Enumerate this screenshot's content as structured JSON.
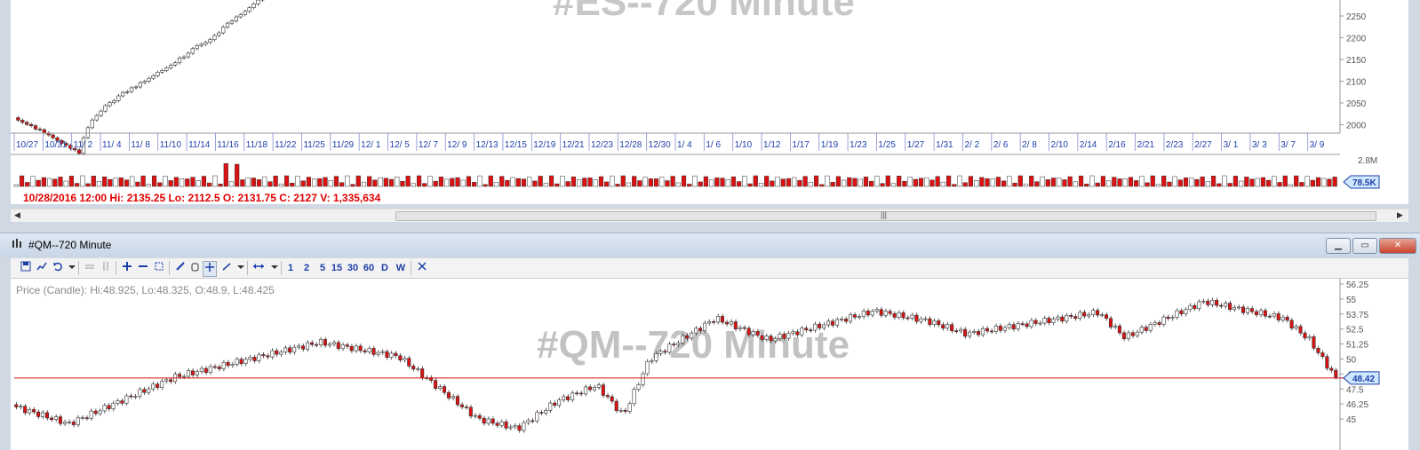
{
  "top_chart": {
    "watermark": "#ES--720 Minute",
    "y_ticks": [
      "2250",
      "2200",
      "2150",
      "2100",
      "2050",
      "2000"
    ],
    "x_ticks": [
      "10/27",
      "10/31",
      "11/ 2",
      "11/ 4",
      "11/ 8",
      "11/10",
      "11/14",
      "11/16",
      "11/18",
      "11/22",
      "11/25",
      "11/29",
      "12/ 1",
      "12/ 5",
      "12/ 7",
      "12/ 9",
      "12/13",
      "12/15",
      "12/19",
      "12/21",
      "12/23",
      "12/28",
      "12/30",
      "1/ 4",
      "1/ 6",
      "1/10",
      "1/12",
      "1/17",
      "1/19",
      "1/23",
      "1/25",
      "1/27",
      "1/31",
      "2/ 2",
      "2/ 6",
      "2/ 8",
      "2/10",
      "2/14",
      "2/16",
      "2/21",
      "2/23",
      "2/27",
      "3/ 1",
      "3/ 3",
      "3/ 7",
      "3/ 9"
    ],
    "volume_scale": "2.8M",
    "volume_last": "78.5K",
    "info_line": "10/28/2016 12:00  Hi: 2135.25  Lo: 2112.5  O: 2131.75  C: 2127  V: 1,335,634",
    "colors": {
      "up": "#ffffff",
      "down": "#dd1111",
      "outline": "#333333"
    }
  },
  "scrollbar": {
    "left_arrow": "◀",
    "right_arrow": "▶",
    "grip": "|||"
  },
  "bottom_window": {
    "title": "#QM--720 Minute",
    "title_icon": "chart-window-icon",
    "controls": {
      "minimize": "▁",
      "maximize": "▭",
      "close": "✕"
    },
    "toolbar": {
      "intervals": [
        "1",
        "2",
        "5",
        "15",
        "30",
        "60",
        "D",
        "W"
      ],
      "icons": [
        "save-icon",
        "indicator-icon",
        "undo-icon",
        "dropdown-icon",
        "hline-icon",
        "vline-icon",
        "zoom-in-icon",
        "zoom-out-icon",
        "fit-icon",
        "pencil-icon",
        "hand-icon",
        "crosshair-icon",
        "trendline-icon",
        "dropdown-icon",
        "scroll-icon",
        "dropdown-icon",
        "close-icon"
      ]
    },
    "price_label": "Price (Candle): Hi:48.925, Lo:48.325, O:48.9, L:48.425",
    "watermark": "#QM--720 Minute",
    "y_ticks": [
      "56.25",
      "55",
      "53.75",
      "52.5",
      "51.25",
      "50",
      "48.75",
      "47.5",
      "46.25",
      "45"
    ],
    "last_price": "48.42",
    "last_price_line_color": "#dd1111"
  }
}
